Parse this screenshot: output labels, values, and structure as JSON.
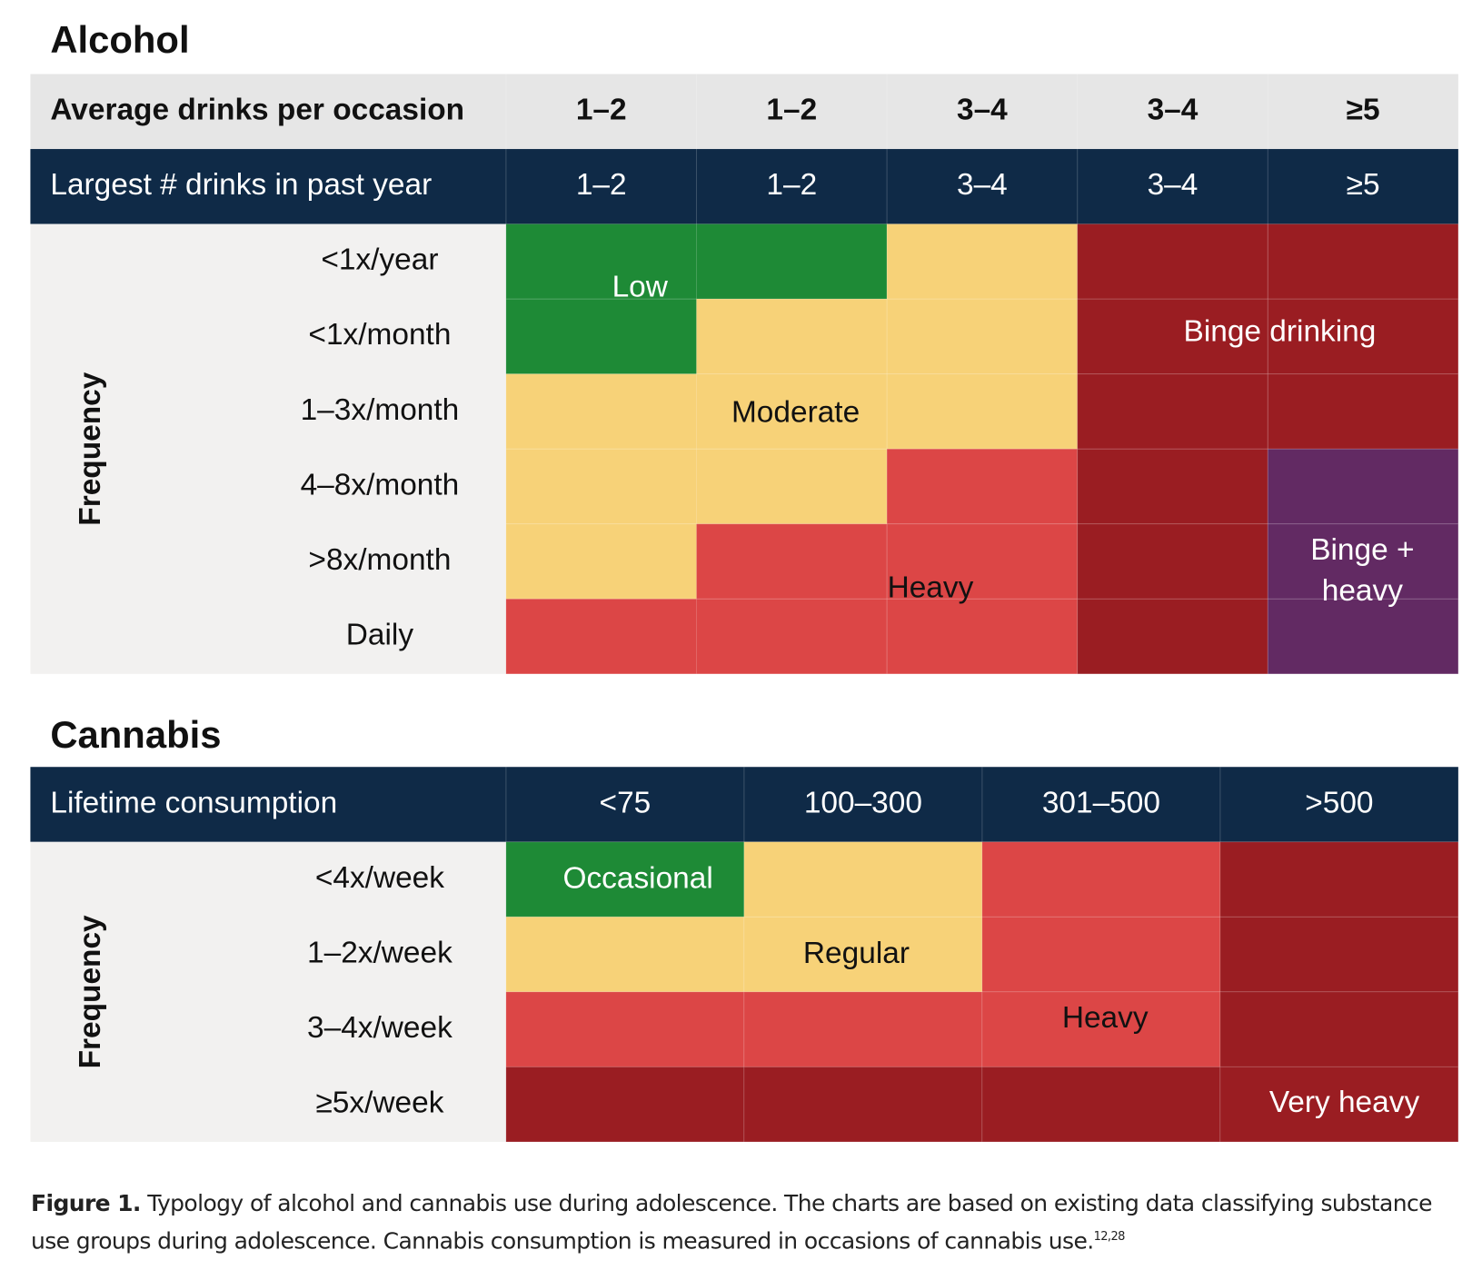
{
  "alcohol": {
    "title": "Alcohol",
    "header_rows": [
      {
        "label": "Average drinks per occasion",
        "values": [
          "1–2",
          "1–2",
          "3–4",
          "3–4",
          "≥5"
        ]
      },
      {
        "label": "Largest # drinks in past year",
        "values": [
          "1–2",
          "1–2",
          "3–4",
          "3–4",
          "≥5"
        ]
      }
    ],
    "axis_label": "Frequency",
    "row_labels": [
      "<1x/year",
      "<1x/month",
      "1–3x/month",
      "4–8x/month",
      ">8x/month",
      "Daily"
    ],
    "groups": [
      {
        "label": "Low"
      },
      {
        "label": "Moderate"
      },
      {
        "label": "Heavy"
      },
      {
        "label": "Binge drinking"
      },
      {
        "lines": [
          "Binge +",
          "heavy"
        ]
      }
    ]
  },
  "cannabis": {
    "title": "Cannabis",
    "header_rows": [
      {
        "label": "Lifetime consumption",
        "values": [
          "<75",
          "100–300",
          "301–500",
          ">500"
        ]
      }
    ],
    "axis_label": "Frequency",
    "row_labels": [
      "<4x/week",
      "1–2x/week",
      "3–4x/week",
      "≥5x/week"
    ],
    "groups": [
      {
        "label": "Occasional"
      },
      {
        "label": "Regular"
      },
      {
        "label": "Heavy"
      },
      {
        "label": "Very heavy"
      }
    ]
  },
  "caption": {
    "label": "Figure 1.",
    "text": "Typology of alcohol and cannabis use during adolescence. The charts are based on existing data classifying substance use groups during adolescence. Cannabis consumption is measured in occasions of cannabis use.",
    "superscript": "12,28"
  }
}
